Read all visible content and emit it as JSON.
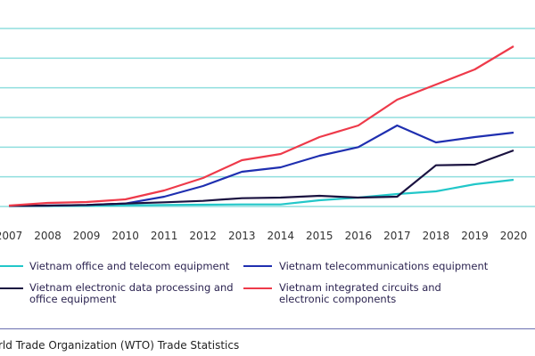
{
  "chart_data": {
    "type": "line",
    "x": [
      2007,
      2008,
      2009,
      2010,
      2011,
      2012,
      2013,
      2014,
      2015,
      2016,
      2017,
      2018,
      2019,
      2020
    ],
    "ylim": [
      0,
      6
    ],
    "grid": true,
    "legend_position": "bottom",
    "series": [
      {
        "name": "Vietnam office and telecom equipment",
        "color": "#22c7c9",
        "values": [
          0.02,
          0.02,
          0.03,
          0.04,
          0.05,
          0.06,
          0.07,
          0.07,
          0.21,
          0.3,
          0.42,
          0.51,
          0.75,
          0.9
        ]
      },
      {
        "name": "Vietnam telecommunications equipment",
        "color": "#1f2fb0",
        "values": [
          0.02,
          0.03,
          0.05,
          0.1,
          0.33,
          0.69,
          1.17,
          1.32,
          1.71,
          2.0,
          2.73,
          2.16,
          2.34,
          2.49
        ]
      },
      {
        "name": "Vietnam electronic data processing and office equipment",
        "color": "#1a1240",
        "values": [
          0.02,
          0.03,
          0.05,
          0.1,
          0.14,
          0.19,
          0.28,
          0.3,
          0.36,
          0.3,
          0.33,
          1.39,
          1.41,
          1.89
        ]
      },
      {
        "name": "Vietnam integrated circuits and electronic components",
        "color": "#ee3a4a",
        "values": [
          0.03,
          0.12,
          0.15,
          0.24,
          0.54,
          0.96,
          1.56,
          1.77,
          2.34,
          2.73,
          3.6,
          4.11,
          4.62,
          5.4
        ]
      }
    ],
    "gridline_color": "#8fdede"
  },
  "legend": {
    "items": [
      {
        "line1": "Vietnam office and telecom equipment",
        "line2": ""
      },
      {
        "line1": "Vietnam telecommunications equipment",
        "line2": ""
      },
      {
        "line1": "Vietnam electronic data processing and",
        "line2": "office equipment"
      },
      {
        "line1": "Vietnam integrated circuits and",
        "line2": "electronic components"
      }
    ]
  },
  "source": "rld Trade Organization (WTO) Trade Statistics"
}
